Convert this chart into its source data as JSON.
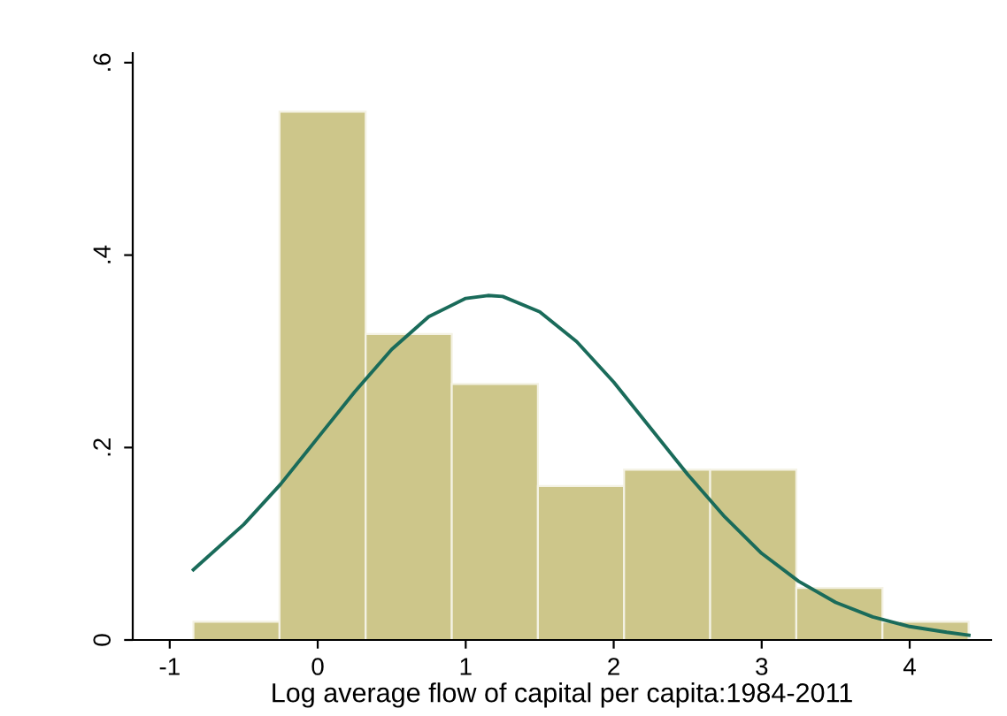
{
  "chart_data": {
    "type": "histogram",
    "xlabel": "Log average flow of capital per capita:1984-2011",
    "series": [
      {
        "type": "histogram",
        "color": "#cdc68a",
        "bins": [
          -0.84,
          -0.258,
          0.324,
          0.906,
          1.488,
          2.07,
          2.652,
          3.234,
          3.816,
          4.398
        ],
        "values": [
          0.019,
          0.549,
          0.318,
          0.266,
          0.16,
          0.177,
          0.177,
          0.054,
          0.019
        ]
      },
      {
        "type": "line",
        "color": "#1a6b5a",
        "x": [
          -0.84,
          -0.5,
          -0.25,
          0,
          0.25,
          0.5,
          0.75,
          1.0,
          1.15,
          1.25,
          1.5,
          1.75,
          2.0,
          2.25,
          2.5,
          2.75,
          3.0,
          3.25,
          3.5,
          3.75,
          4.0,
          4.25,
          4.4
        ],
        "values": [
          0.073,
          0.12,
          0.162,
          0.21,
          0.258,
          0.302,
          0.336,
          0.355,
          0.358,
          0.357,
          0.341,
          0.31,
          0.268,
          0.22,
          0.172,
          0.128,
          0.09,
          0.061,
          0.039,
          0.024,
          0.014,
          0.008,
          0.005
        ]
      }
    ],
    "xlim": [
      -1.25,
      4.55
    ],
    "ylim": [
      0,
      0.61
    ],
    "xticks": [
      -1,
      0,
      1,
      2,
      3,
      4
    ],
    "yticks": [
      0,
      {
        "value": 0.2,
        "label": ".2"
      },
      {
        "value": 0.4,
        "label": ".4"
      },
      {
        "value": 0.6,
        "label": ".6"
      }
    ],
    "grid": false,
    "legend": false
  }
}
